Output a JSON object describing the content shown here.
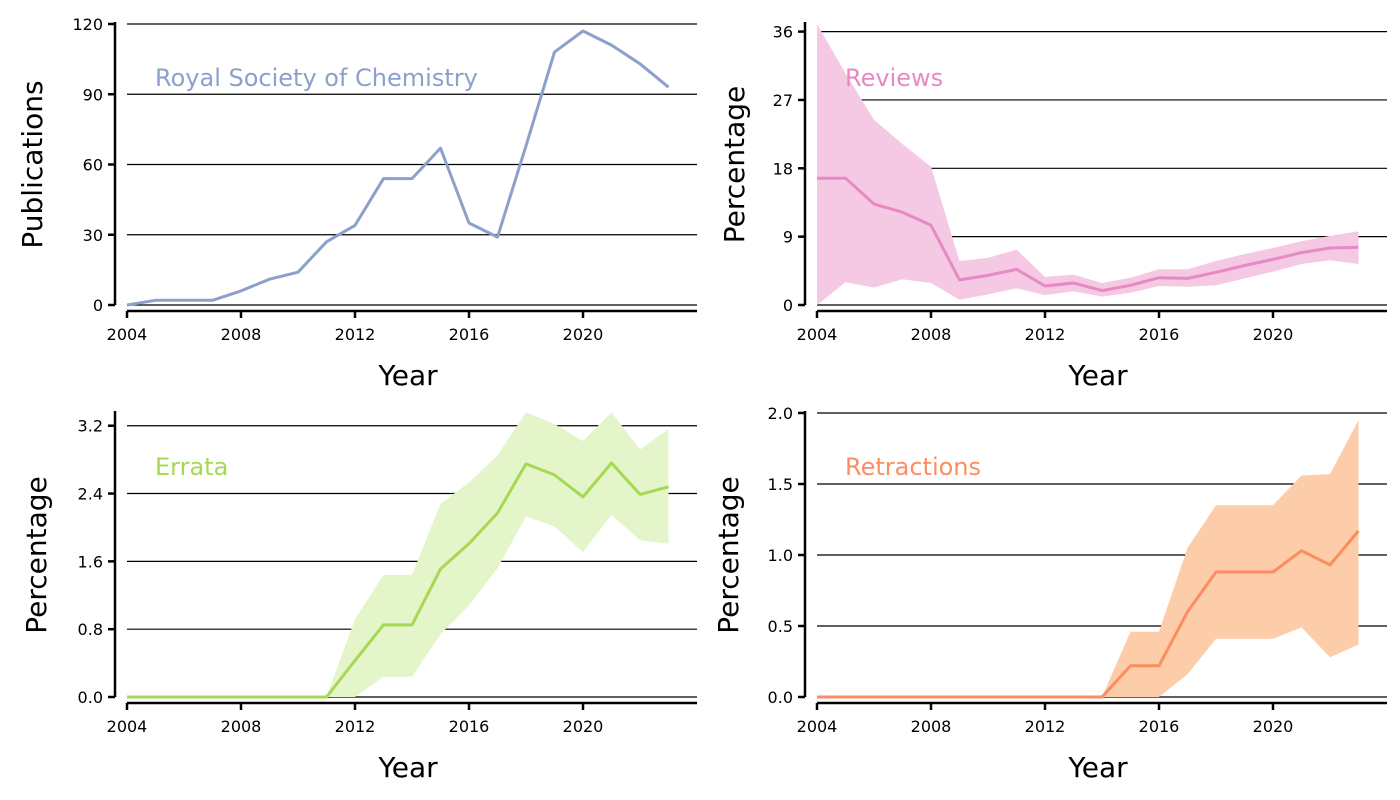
{
  "chart_data": [
    {
      "type": "line",
      "title": "Royal Society of Chemistry",
      "xlabel": "Year",
      "ylabel": "Publications",
      "color": "#8da0cb",
      "band_color": "",
      "xlim": [
        2004,
        2024
      ],
      "ylim": [
        0,
        120
      ],
      "xticks": [
        2004,
        2008,
        2012,
        2016,
        2020
      ],
      "yticks": [
        0,
        30,
        60,
        90,
        120
      ],
      "ytick_labels": [
        "0",
        "30",
        "60",
        "90",
        "120"
      ],
      "grid": "horizontal",
      "x": [
        2004,
        2005,
        2006,
        2007,
        2008,
        2009,
        2010,
        2011,
        2012,
        2013,
        2014,
        2015,
        2016,
        2017,
        2018,
        2019,
        2020,
        2021,
        2022,
        2023
      ],
      "y": [
        0,
        2,
        2,
        2,
        6,
        11,
        14,
        27,
        34,
        54,
        54,
        67,
        35,
        29,
        68,
        108,
        117,
        111,
        103,
        93
      ],
      "lower": null,
      "upper": null
    },
    {
      "type": "line",
      "title": "Reviews",
      "xlabel": "Year",
      "ylabel": "Percentage",
      "color": "#e78ac3",
      "band_color": "#f5c8e4",
      "xlim": [
        2004,
        2024
      ],
      "ylim": [
        0,
        37
      ],
      "xticks": [
        2004,
        2008,
        2012,
        2016,
        2020
      ],
      "yticks": [
        0,
        9,
        18,
        27,
        36
      ],
      "ytick_labels": [
        "0",
        "9",
        "18",
        "27",
        "36"
      ],
      "grid": "horizontal",
      "x": [
        2004,
        2005,
        2006,
        2007,
        2008,
        2009,
        2010,
        2011,
        2012,
        2013,
        2014,
        2015,
        2016,
        2017,
        2018,
        2019,
        2020,
        2021,
        2022,
        2023
      ],
      "y": [
        16.7,
        16.7,
        13.3,
        12.2,
        10.5,
        3.3,
        3.9,
        4.7,
        2.5,
        2.9,
        1.9,
        2.6,
        3.6,
        3.5,
        4.3,
        5.2,
        6.0,
        6.9,
        7.5,
        7.6
      ],
      "lower": [
        0,
        3.0,
        2.3,
        3.4,
        2.9,
        0.7,
        1.4,
        2.2,
        1.3,
        1.8,
        1.1,
        1.6,
        2.5,
        2.4,
        2.6,
        3.5,
        4.4,
        5.4,
        5.9,
        5.4
      ],
      "upper": [
        37.0,
        30.5,
        24.4,
        21.2,
        18.2,
        5.8,
        6.2,
        7.3,
        3.7,
        4.0,
        2.9,
        3.6,
        4.7,
        4.7,
        5.8,
        6.7,
        7.5,
        8.4,
        9.1,
        9.7
      ]
    },
    {
      "type": "line",
      "title": "Errata",
      "xlabel": "Year",
      "ylabel": "Percentage",
      "color": "#a6d854",
      "band_color": "#e3f5c9",
      "xlim": [
        2004,
        2024
      ],
      "ylim": [
        0,
        3.35
      ],
      "xticks": [
        2004,
        2008,
        2012,
        2016,
        2020
      ],
      "yticks": [
        0,
        0.8,
        1.6,
        2.4,
        3.2
      ],
      "ytick_labels": [
        "0.0",
        "0.8",
        "1.6",
        "2.4",
        "3.2"
      ],
      "grid": "horizontal",
      "x": [
        2004,
        2005,
        2006,
        2007,
        2008,
        2009,
        2010,
        2011,
        2012,
        2013,
        2014,
        2015,
        2016,
        2017,
        2018,
        2019,
        2020,
        2021,
        2022,
        2023
      ],
      "y": [
        0,
        0,
        0,
        0,
        0,
        0,
        0,
        0,
        0.43,
        0.85,
        0.85,
        1.51,
        1.81,
        2.17,
        2.75,
        2.62,
        2.36,
        2.76,
        2.39,
        2.48
      ],
      "lower": [
        0,
        0,
        0,
        0,
        0,
        0,
        0,
        0,
        0,
        0.24,
        0.24,
        0.74,
        1.08,
        1.52,
        2.13,
        2.01,
        1.71,
        2.15,
        1.85,
        1.81
      ],
      "upper": [
        0,
        0,
        0,
        0,
        0,
        0,
        0,
        0,
        0.92,
        1.44,
        1.44,
        2.28,
        2.53,
        2.85,
        3.36,
        3.22,
        3.02,
        3.36,
        2.92,
        3.16
      ]
    },
    {
      "type": "line",
      "title": "Retractions",
      "xlabel": "Year",
      "ylabel": "Percentage",
      "color": "#fc8d62",
      "band_color": "#fdcca8",
      "xlim": [
        2004,
        2024
      ],
      "ylim": [
        0,
        2.0
      ],
      "xticks": [
        2004,
        2008,
        2012,
        2016,
        2020
      ],
      "yticks": [
        0,
        0.5,
        1.0,
        1.5,
        2.0
      ],
      "ytick_labels": [
        "0.0",
        "0.5",
        "1.0",
        "1.5",
        "2.0"
      ],
      "grid": "horizontal",
      "x": [
        2004,
        2005,
        2006,
        2007,
        2008,
        2009,
        2010,
        2011,
        2012,
        2013,
        2014,
        2015,
        2016,
        2017,
        2018,
        2019,
        2020,
        2021,
        2022,
        2023
      ],
      "y": [
        0,
        0,
        0,
        0,
        0,
        0,
        0,
        0,
        0,
        0,
        0,
        0.22,
        0.22,
        0.6,
        0.88,
        0.88,
        0.88,
        1.03,
        0.93,
        1.17
      ],
      "lower": [
        0,
        0,
        0,
        0,
        0,
        0,
        0,
        0,
        0,
        0,
        0,
        0,
        0,
        0.16,
        0.41,
        0.41,
        0.41,
        0.49,
        0.28,
        0.37
      ],
      "upper": [
        0,
        0,
        0,
        0,
        0,
        0,
        0,
        0,
        0,
        0,
        0,
        0.46,
        0.46,
        1.05,
        1.35,
        1.35,
        1.35,
        1.56,
        1.57,
        1.95
      ]
    }
  ]
}
